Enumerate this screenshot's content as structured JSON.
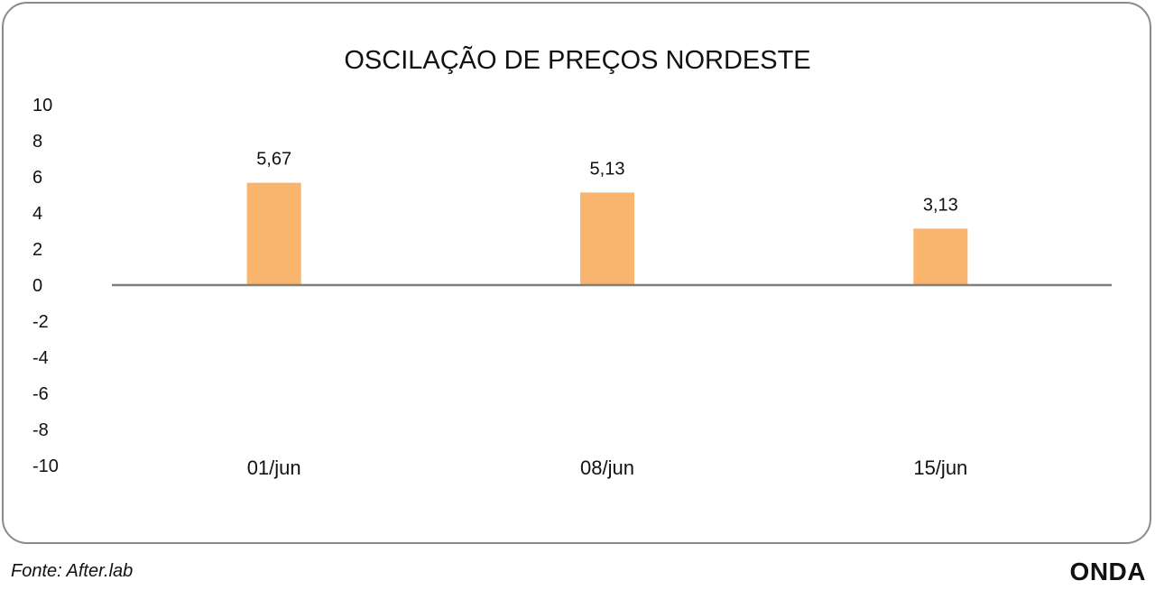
{
  "chart_data": {
    "type": "bar",
    "title": "OSCILAÇÃO DE PREÇOS NORDESTE",
    "categories": [
      "01/jun",
      "08/jun",
      "15/jun"
    ],
    "series": [
      {
        "values": [
          5.67,
          5.13,
          3.13
        ],
        "labels": [
          "5,67",
          "5,13",
          "3,13"
        ]
      }
    ],
    "xlabel": "",
    "ylabel": "",
    "ylim": [
      -10,
      10
    ],
    "yticks": [
      10,
      8,
      6,
      4,
      2,
      0,
      -2,
      -4,
      -6,
      -8,
      -10
    ],
    "ytick_labels": [
      "10",
      "8",
      "6",
      "4",
      "2",
      "0",
      "-2",
      "-4",
      "-6",
      "-8",
      "-10"
    ],
    "grid": false,
    "legend": "none",
    "bar_color": "#f9b46e",
    "axis_color": "#7f7f7f"
  },
  "footer": {
    "source": "Fonte: After.lab",
    "brand": "ONDA"
  }
}
